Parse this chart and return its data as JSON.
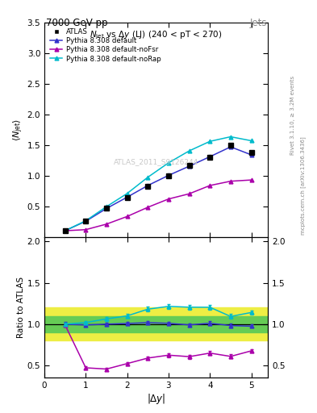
{
  "title_main": "7000 GeV pp",
  "title_right": "Jets",
  "ylabel_main": "$\\langle N_{\\rm jet}\\rangle$",
  "ylabel_ratio": "Ratio to ATLAS",
  "xlabel": "$|\\Delta y|$",
  "watermark": "ATLAS_2011_S9126244",
  "right_label1": "Rivet 3.1.10, ≥ 3.2M events",
  "right_label2": "mcplots.cern.ch [arXiv:1306.3436]",
  "x_data": [
    0.5,
    1.0,
    1.5,
    2.0,
    2.5,
    3.0,
    3.5,
    4.0,
    4.5,
    5.0
  ],
  "atlas_y": [
    0.108,
    0.265,
    0.47,
    0.65,
    0.83,
    1.0,
    1.17,
    1.3,
    1.5,
    1.38
  ],
  "atlas_yerr": [
    0.004,
    0.007,
    0.01,
    0.012,
    0.014,
    0.016,
    0.018,
    0.022,
    0.028,
    0.024
  ],
  "default_y": [
    0.108,
    0.262,
    0.47,
    0.655,
    0.845,
    1.01,
    1.16,
    1.315,
    1.475,
    1.345
  ],
  "default_yerr": [
    0.002,
    0.004,
    0.006,
    0.008,
    0.01,
    0.012,
    0.014,
    0.016,
    0.02,
    0.018
  ],
  "noFsr_y": [
    0.107,
    0.125,
    0.215,
    0.34,
    0.49,
    0.625,
    0.71,
    0.845,
    0.915,
    0.935
  ],
  "noFsr_yerr": [
    0.002,
    0.003,
    0.004,
    0.006,
    0.008,
    0.01,
    0.012,
    0.015,
    0.017,
    0.015
  ],
  "noRap_y": [
    0.108,
    0.27,
    0.5,
    0.715,
    0.98,
    1.215,
    1.41,
    1.565,
    1.64,
    1.575
  ],
  "noRap_yerr": [
    0.002,
    0.005,
    0.008,
    0.011,
    0.015,
    0.018,
    0.021,
    0.025,
    0.028,
    0.025
  ],
  "ratio_default_y": [
    1.0,
    0.99,
    1.0,
    1.008,
    1.018,
    1.01,
    0.991,
    1.011,
    0.983,
    0.975
  ],
  "ratio_default_yerr": [
    0.025,
    0.022,
    0.02,
    0.018,
    0.018,
    0.019,
    0.02,
    0.022,
    0.024,
    0.02
  ],
  "ratio_noFsr_y": [
    0.99,
    0.472,
    0.457,
    0.523,
    0.59,
    0.625,
    0.607,
    0.65,
    0.61,
    0.677
  ],
  "ratio_noFsr_yerr": [
    0.02,
    0.018,
    0.018,
    0.018,
    0.02,
    0.022,
    0.024,
    0.027,
    0.025,
    0.022
  ],
  "ratio_noRap_y": [
    1.0,
    1.019,
    1.064,
    1.1,
    1.181,
    1.215,
    1.205,
    1.204,
    1.093,
    1.141
  ],
  "ratio_noRap_yerr": [
    0.02,
    0.022,
    0.024,
    0.026,
    0.028,
    0.03,
    0.03,
    0.032,
    0.028,
    0.028
  ],
  "color_atlas": "#000000",
  "color_default": "#3333cc",
  "color_noFsr": "#aa00aa",
  "color_noRap": "#00bbcc",
  "ylim_main": [
    0.0,
    3.5
  ],
  "ylim_ratio": [
    0.35,
    2.05
  ],
  "xlim": [
    0.0,
    5.4
  ],
  "yticks_main": [
    0.5,
    1.0,
    1.5,
    2.0,
    2.5,
    3.0,
    3.5
  ],
  "yticks_ratio": [
    0.5,
    1.0,
    1.5,
    2.0
  ]
}
